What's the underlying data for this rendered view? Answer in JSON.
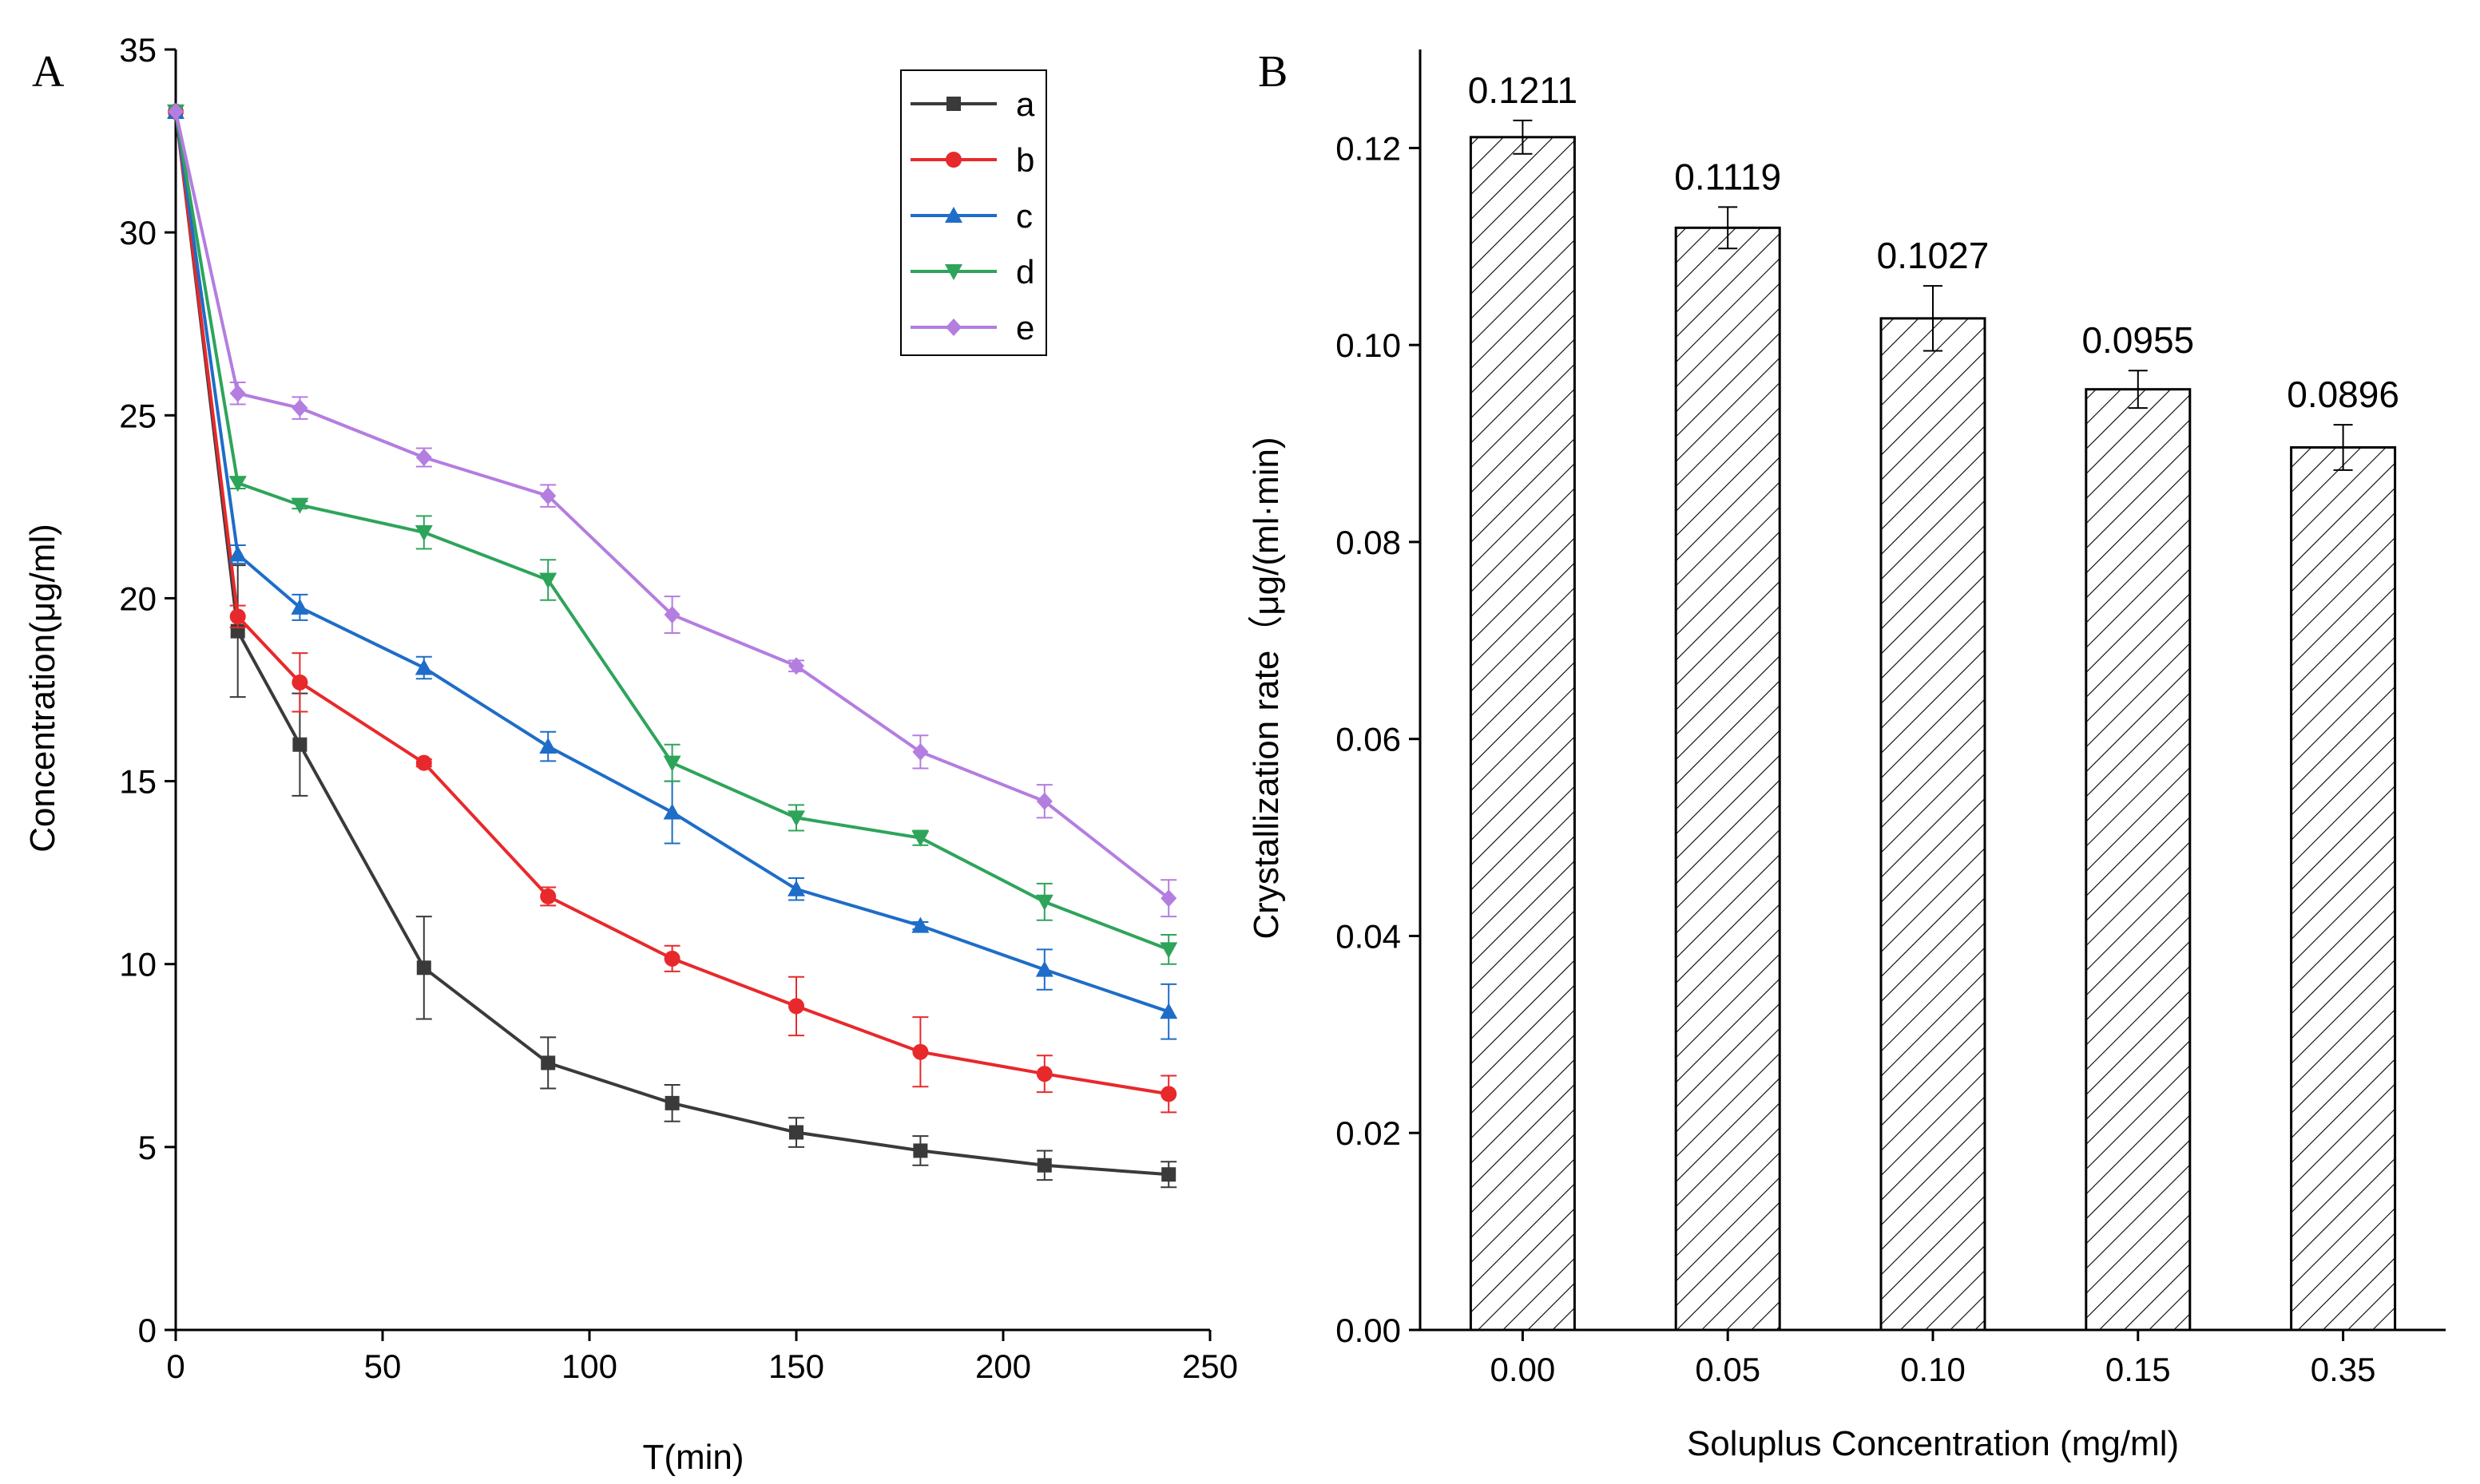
{
  "chart_data": [
    {
      "type": "line",
      "panel_label": "A",
      "title": "",
      "xlabel": "T(min)",
      "ylabel": "Concentration(μg/ml)",
      "xlim": [
        0,
        250
      ],
      "ylim": [
        0,
        35
      ],
      "xticks": [
        0,
        50,
        100,
        150,
        200,
        250
      ],
      "yticks": [
        0,
        5,
        10,
        15,
        20,
        25,
        30,
        35
      ],
      "legend_position": "top-right",
      "x": [
        0,
        15,
        30,
        60,
        90,
        120,
        150,
        180,
        210,
        240
      ],
      "series": [
        {
          "name": "a",
          "color": "#3a3a3a",
          "marker": "square",
          "values": [
            33.3,
            19.1,
            16.0,
            9.9,
            7.3,
            6.2,
            5.4,
            4.9,
            4.5,
            4.25
          ],
          "errors": [
            0,
            1.8,
            1.4,
            1.4,
            0.7,
            0.5,
            0.4,
            0.4,
            0.4,
            0.35
          ]
        },
        {
          "name": "b",
          "color": "#e8292b",
          "marker": "circle",
          "values": [
            33.3,
            19.5,
            17.7,
            15.5,
            11.85,
            10.15,
            8.85,
            7.6,
            7.0,
            6.45
          ],
          "errors": [
            0,
            0.3,
            0.8,
            0.1,
            0.25,
            0.35,
            0.8,
            0.95,
            0.5,
            0.5
          ]
        },
        {
          "name": "c",
          "color": "#1e6dc8",
          "marker": "triangle-up",
          "values": [
            33.3,
            21.2,
            19.75,
            18.1,
            15.95,
            14.15,
            12.05,
            11.05,
            9.85,
            8.7
          ],
          "errors": [
            0,
            0.25,
            0.35,
            0.3,
            0.4,
            0.85,
            0.3,
            0.1,
            0.55,
            0.75
          ]
        },
        {
          "name": "d",
          "color": "#2ea45a",
          "marker": "triangle-down",
          "values": [
            33.3,
            23.15,
            22.55,
            21.8,
            20.5,
            15.5,
            14.0,
            13.45,
            11.7,
            10.4
          ],
          "errors": [
            0,
            0.15,
            0.1,
            0.45,
            0.55,
            0.5,
            0.35,
            0.2,
            0.5,
            0.4
          ]
        },
        {
          "name": "e",
          "color": "#b47de0",
          "marker": "diamond",
          "values": [
            33.3,
            25.6,
            25.2,
            23.85,
            22.8,
            19.55,
            18.15,
            15.8,
            14.45,
            11.8
          ],
          "errors": [
            0,
            0.3,
            0.3,
            0.25,
            0.3,
            0.5,
            0.15,
            0.45,
            0.45,
            0.5
          ]
        }
      ]
    },
    {
      "type": "bar",
      "panel_label": "B",
      "title": "",
      "xlabel": "Soluplus Concentration (mg/ml)",
      "ylabel": "Crystallization rate（μg/(ml·min)",
      "ylim": [
        0,
        0.13
      ],
      "yticks": [
        "0.00",
        "0.02",
        "0.04",
        "0.06",
        "0.08",
        "0.10",
        "0.12"
      ],
      "categories": [
        "0.00",
        "0.05",
        "0.10",
        "0.15",
        "0.35"
      ],
      "values": [
        0.1211,
        0.1119,
        0.1027,
        0.0955,
        0.0896
      ],
      "errors": [
        0.0017,
        0.0021,
        0.0033,
        0.0019,
        0.0023
      ],
      "data_labels": [
        "0.1211",
        "0.1119",
        "0.1027",
        "0.0955",
        "0.0896"
      ],
      "fill": "hatched",
      "color": "#000000"
    }
  ]
}
